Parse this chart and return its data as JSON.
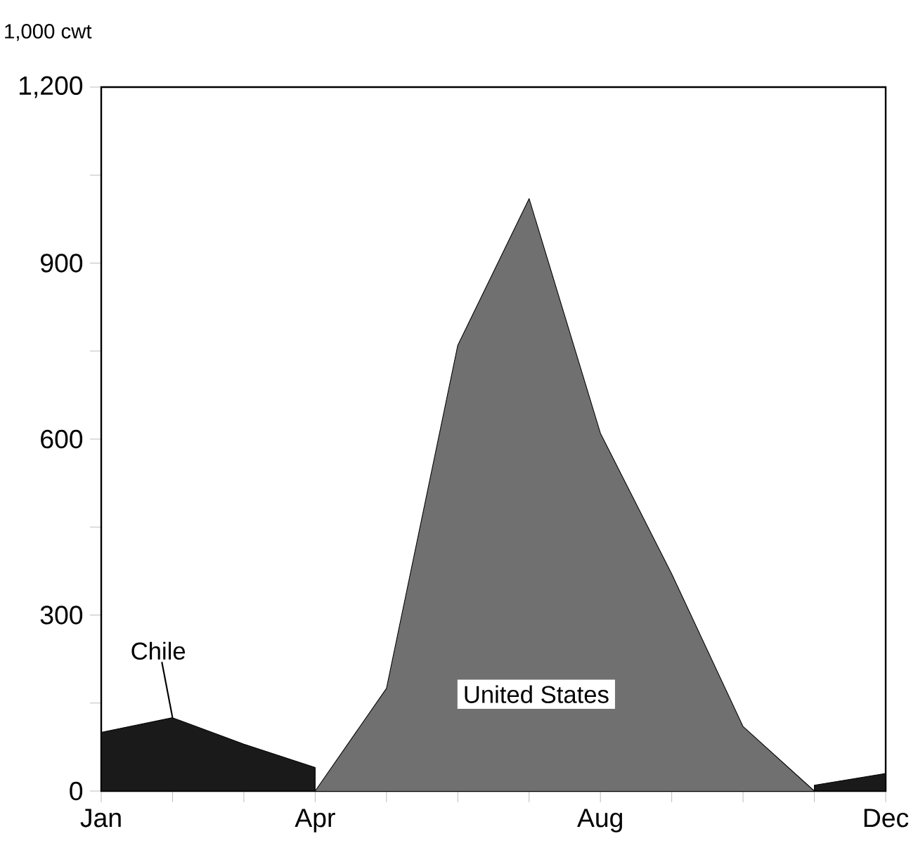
{
  "chart_data": {
    "type": "area",
    "ylabel": "1,000 cwt",
    "categories": [
      "Jan",
      null,
      null,
      "Apr",
      null,
      null,
      null,
      "Aug",
      null,
      null,
      null,
      "Dec"
    ],
    "series": [
      {
        "name": "Chile",
        "color": "#1a1a1a",
        "values": [
          100,
          125,
          80,
          40,
          null,
          null,
          null,
          null,
          null,
          null,
          10,
          30
        ]
      },
      {
        "name": "United States",
        "color": "#707070",
        "values": [
          0,
          0,
          0,
          0,
          175,
          760,
          1010,
          610,
          370,
          110,
          0,
          0
        ]
      }
    ],
    "ylim": [
      0,
      1200
    ],
    "yticks": [
      0,
      {
        "value": 150,
        "label": null
      },
      300,
      {
        "value": 450,
        "label": null
      },
      600,
      {
        "value": 750,
        "label": null
      },
      900,
      {
        "value": 1050,
        "label": null
      },
      {
        "value": 1200,
        "label": "1,200"
      }
    ],
    "legend": false,
    "grid": false
  }
}
